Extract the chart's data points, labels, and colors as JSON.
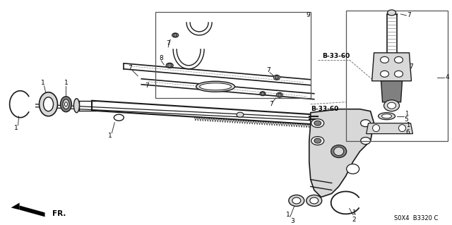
{
  "background_color": "#ffffff",
  "line_color": "#1a1a1a",
  "text_color": "#000000",
  "gray_fill": "#b0b0b0",
  "light_gray": "#d8d8d8",
  "dark_gray": "#808080",
  "part_numbers": {
    "b3320": "S0X4  B3320 C",
    "b3360_1": "B-33-60",
    "b3360_2": "B-33-60"
  }
}
